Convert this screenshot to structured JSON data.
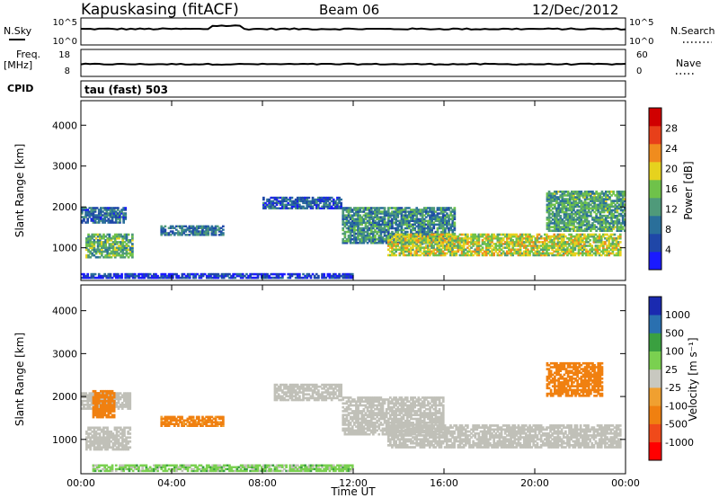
{
  "header": {
    "station": "Kapuskasing (fitACF)",
    "beam": "Beam 06",
    "date": "12/Dec/2012"
  },
  "summary_panels": {
    "nsky_label": "N.Sky",
    "nsky_ticks": [
      "10^5",
      "10^0"
    ],
    "nsearch_label": "N.Search",
    "nsearch_ticks": [
      "10^5",
      "10^0"
    ],
    "freq_label": "Freq.",
    "freq_unit": "[MHz]",
    "freq_ticks": [
      "18",
      "8"
    ],
    "nave_label": "Nave",
    "nave_ticks": [
      "60",
      "0"
    ],
    "cpid_label": "CPID",
    "cpid_value": "tau (fast) 503"
  },
  "colors": {
    "power_scale": [
      "#1a1aff",
      "#1f47a8",
      "#2a6f9a",
      "#4f9a7a",
      "#6fc24a",
      "#e6d21e",
      "#f08c1e",
      "#e8401a",
      "#d00000"
    ],
    "velocity_scale": [
      "#ff0000",
      "#f04a1a",
      "#f08010",
      "#f0a030",
      "#c8c8c0",
      "#7ad050",
      "#3aa040",
      "#2a70b0",
      "#1a2ab0"
    ],
    "ground_scatter": "#c0c0b8"
  },
  "chart_data": [
    {
      "type": "heatmap",
      "name": "power",
      "title": "",
      "xlabel": "",
      "ylabel": "Slant Range [km]",
      "xlim": [
        "00:00",
        "00:00"
      ],
      "ylim": [
        200,
        4600
      ],
      "yticks": [
        "1000",
        "2000",
        "3000",
        "4000"
      ],
      "colorbar": {
        "label": "Power [dB]",
        "ticks": [
          "4",
          "8",
          "12",
          "16",
          "20",
          "24",
          "28"
        ],
        "range": [
          0,
          32
        ]
      },
      "bands": [
        {
          "t0": 0.2,
          "t1": 2.3,
          "r0": 750,
          "r1": 1350,
          "level": 14
        },
        {
          "t0": 0.0,
          "t1": 2.0,
          "r0": 1600,
          "r1": 2000,
          "level": 8
        },
        {
          "t0": 3.5,
          "t1": 6.3,
          "r0": 1300,
          "r1": 1550,
          "level": 9
        },
        {
          "t0": 8.0,
          "t1": 11.5,
          "r0": 1950,
          "r1": 2250,
          "level": 7
        },
        {
          "t0": 11.5,
          "t1": 16.5,
          "r0": 1100,
          "r1": 2000,
          "level": 11
        },
        {
          "t0": 13.5,
          "t1": 23.8,
          "r0": 800,
          "r1": 1350,
          "level": 18
        },
        {
          "t0": 20.5,
          "t1": 24.0,
          "r0": 1400,
          "r1": 2400,
          "level": 13
        },
        {
          "t0": 0.0,
          "t1": 12.0,
          "r0": 250,
          "r1": 380,
          "level": 4
        }
      ]
    },
    {
      "type": "heatmap",
      "name": "velocity",
      "title": "",
      "xlabel": "Time UT",
      "ylabel": "Slant Range [km]",
      "xlim": [
        "00:00",
        "00:00"
      ],
      "xticks": [
        "00:00",
        "04:00",
        "08:00",
        "12:00",
        "16:00",
        "20:00",
        "00:00"
      ],
      "ylim": [
        200,
        4600
      ],
      "yticks": [
        "1000",
        "2000",
        "3000",
        "4000"
      ],
      "colorbar": {
        "label": "Velocity [m s⁻¹]",
        "ticks": [
          "1000",
          "500",
          "100",
          "25",
          "-25",
          "-100",
          "-500",
          "-1000"
        ]
      },
      "bands": [
        {
          "t0": 0.0,
          "t1": 2.2,
          "r0": 1700,
          "r1": 2100,
          "velocity": 0
        },
        {
          "t0": 0.2,
          "t1": 2.2,
          "r0": 750,
          "r1": 1300,
          "velocity": 0
        },
        {
          "t0": 0.5,
          "t1": 1.5,
          "r0": 1500,
          "r1": 2150,
          "velocity": -200
        },
        {
          "t0": 3.5,
          "t1": 6.3,
          "r0": 1300,
          "r1": 1550,
          "velocity": -150
        },
        {
          "t0": 8.5,
          "t1": 11.5,
          "r0": 1900,
          "r1": 2300,
          "velocity": 0
        },
        {
          "t0": 11.5,
          "t1": 16.0,
          "r0": 1100,
          "r1": 2000,
          "velocity": 0
        },
        {
          "t0": 13.5,
          "t1": 23.8,
          "r0": 800,
          "r1": 1350,
          "velocity": 0
        },
        {
          "t0": 20.5,
          "t1": 23.0,
          "r0": 2000,
          "r1": 2800,
          "velocity": -200
        },
        {
          "t0": 0.5,
          "t1": 12.0,
          "r0": 250,
          "r1": 420,
          "velocity": 60
        }
      ]
    }
  ]
}
